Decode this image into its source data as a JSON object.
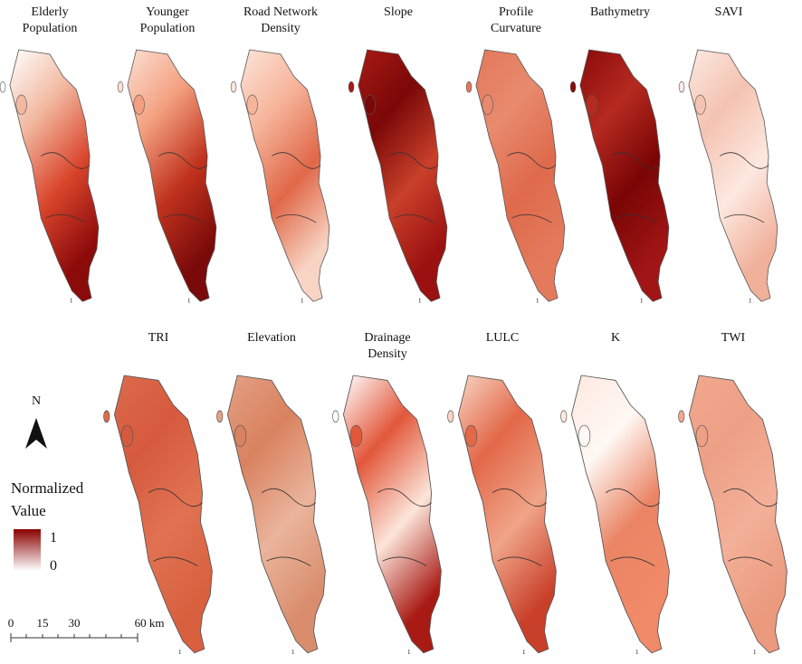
{
  "panels": [
    {
      "title_lines": [
        "Elderly",
        "Population"
      ],
      "mark": "1"
    },
    {
      "title_lines": [
        "Younger",
        "Population"
      ],
      "mark": "1"
    },
    {
      "title_lines": [
        "Road Network",
        "Density"
      ],
      "mark": "1"
    },
    {
      "title_lines": [
        "Slope"
      ],
      "mark": "1"
    },
    {
      "title_lines": [
        "Profile",
        "Curvature"
      ],
      "mark": "1"
    },
    {
      "title_lines": [
        "Bathymetry"
      ],
      "mark": "1"
    },
    {
      "title_lines": [
        "SAVI"
      ],
      "mark": "1"
    },
    {
      "title_lines": [
        "TRI"
      ],
      "mark": "1"
    },
    {
      "title_lines": [
        "Elevation"
      ],
      "mark": "1"
    },
    {
      "title_lines": [
        "Drainage",
        "Density"
      ],
      "mark": "1"
    },
    {
      "title_lines": [
        "LULC"
      ],
      "mark": "1"
    },
    {
      "title_lines": [
        "K"
      ],
      "mark": "1"
    },
    {
      "title_lines": [
        "TWI"
      ],
      "mark": "1"
    }
  ],
  "legend": {
    "north": "N",
    "title_lines": [
      "Normalized",
      "Value"
    ],
    "max": "1",
    "min": "0"
  },
  "scale_bar": {
    "labels": [
      "0",
      "15",
      "30",
      "60 km"
    ]
  }
}
